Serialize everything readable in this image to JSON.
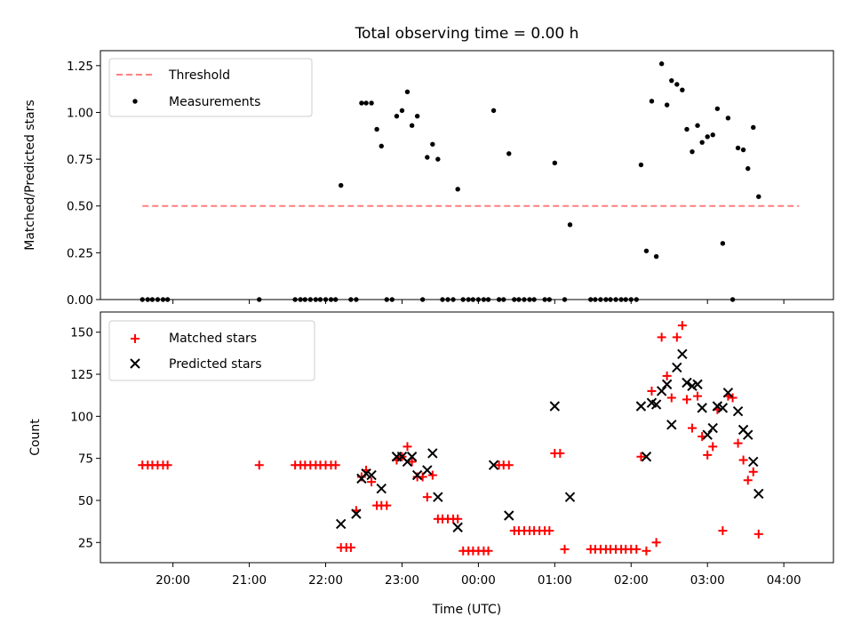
{
  "chart_data": [
    {
      "type": "scatter",
      "title": "Total observing time = 0.00 h",
      "ylabel": "Matched/Predicted stars",
      "xlabel": "",
      "x_unit": "hours since 00:00 UTC",
      "xlim": [
        -4.95,
        4.65
      ],
      "ylim": [
        0,
        1.33
      ],
      "yticks": [
        0.0,
        0.25,
        0.5,
        0.75,
        1.0,
        1.25
      ],
      "ytick_labels": [
        "0.00",
        "0.25",
        "0.50",
        "0.75",
        "1.00",
        "1.25"
      ],
      "legend": {
        "location": "upper-left",
        "entries": [
          "Threshold",
          "Measurements"
        ]
      },
      "threshold": {
        "name": "Threshold",
        "y": 0.5,
        "x_start": -4.4,
        "x_end": 4.2,
        "color": "#ff7f7f"
      },
      "series": [
        {
          "name": "Measurements",
          "color": "#000000",
          "marker": "dot",
          "points": [
            [
              -4.4,
              0.0
            ],
            [
              -4.33,
              0.0
            ],
            [
              -4.27,
              0.0
            ],
            [
              -4.2,
              0.0
            ],
            [
              -4.13,
              0.0
            ],
            [
              -4.07,
              0.0
            ],
            [
              -2.87,
              0.0
            ],
            [
              -2.4,
              0.0
            ],
            [
              -2.33,
              0.0
            ],
            [
              -2.27,
              0.0
            ],
            [
              -2.2,
              0.0
            ],
            [
              -2.13,
              0.0
            ],
            [
              -2.07,
              0.0
            ],
            [
              -2.0,
              0.0
            ],
            [
              -1.93,
              0.0
            ],
            [
              -1.87,
              0.0
            ],
            [
              -1.8,
              0.61
            ],
            [
              -1.67,
              0.0
            ],
            [
              -1.6,
              0.0
            ],
            [
              -1.53,
              1.05
            ],
            [
              -1.47,
              1.05
            ],
            [
              -1.4,
              1.05
            ],
            [
              -1.33,
              0.91
            ],
            [
              -1.27,
              0.82
            ],
            [
              -1.2,
              0.0
            ],
            [
              -1.13,
              0.0
            ],
            [
              -1.07,
              0.98
            ],
            [
              -1.0,
              1.01
            ],
            [
              -0.93,
              1.11
            ],
            [
              -0.87,
              0.93
            ],
            [
              -0.8,
              0.98
            ],
            [
              -0.73,
              0.0
            ],
            [
              -0.67,
              0.76
            ],
            [
              -0.6,
              0.83
            ],
            [
              -0.53,
              0.75
            ],
            [
              -0.47,
              0.0
            ],
            [
              -0.4,
              0.0
            ],
            [
              -0.33,
              0.0
            ],
            [
              -0.27,
              0.59
            ],
            [
              -0.2,
              0.0
            ],
            [
              -0.13,
              0.0
            ],
            [
              -0.07,
              0.0
            ],
            [
              0.0,
              0.0
            ],
            [
              0.07,
              0.0
            ],
            [
              0.13,
              0.0
            ],
            [
              0.2,
              1.01
            ],
            [
              0.27,
              0.0
            ],
            [
              0.33,
              0.0
            ],
            [
              0.4,
              0.78
            ],
            [
              0.47,
              0.0
            ],
            [
              0.53,
              0.0
            ],
            [
              0.6,
              0.0
            ],
            [
              0.67,
              0.0
            ],
            [
              0.73,
              0.0
            ],
            [
              0.87,
              0.0
            ],
            [
              0.93,
              0.0
            ],
            [
              1.0,
              0.73
            ],
            [
              1.13,
              0.0
            ],
            [
              1.2,
              0.4
            ],
            [
              1.47,
              0.0
            ],
            [
              1.53,
              0.0
            ],
            [
              1.6,
              0.0
            ],
            [
              1.67,
              0.0
            ],
            [
              1.73,
              0.0
            ],
            [
              1.8,
              0.0
            ],
            [
              1.87,
              0.0
            ],
            [
              1.93,
              0.0
            ],
            [
              2.0,
              0.0
            ],
            [
              2.07,
              0.0
            ],
            [
              2.13,
              0.72
            ],
            [
              2.2,
              0.26
            ],
            [
              2.27,
              1.06
            ],
            [
              2.33,
              0.23
            ],
            [
              2.4,
              1.26
            ],
            [
              2.47,
              1.04
            ],
            [
              2.53,
              1.17
            ],
            [
              2.6,
              1.15
            ],
            [
              2.67,
              1.12
            ],
            [
              2.73,
              0.91
            ],
            [
              2.8,
              0.79
            ],
            [
              2.87,
              0.93
            ],
            [
              2.93,
              0.84
            ],
            [
              3.0,
              0.87
            ],
            [
              3.07,
              0.88
            ],
            [
              3.13,
              1.02
            ],
            [
              3.2,
              0.3
            ],
            [
              3.27,
              0.97
            ],
            [
              3.33,
              0.0
            ],
            [
              3.4,
              0.81
            ],
            [
              3.47,
              0.8
            ],
            [
              3.53,
              0.7
            ],
            [
              3.6,
              0.92
            ],
            [
              3.67,
              0.55
            ]
          ]
        }
      ]
    },
    {
      "type": "scatter",
      "title": "",
      "ylabel": "Count",
      "xlabel": "Time (UTC)",
      "x_unit": "hours since 00:00 UTC",
      "xlim": [
        -4.95,
        4.65
      ],
      "ylim": [
        13,
        162
      ],
      "yticks": [
        25,
        50,
        75,
        100,
        125,
        150
      ],
      "ytick_labels": [
        "25",
        "50",
        "75",
        "100",
        "125",
        "150"
      ],
      "xticks": [
        -4,
        -3,
        -2,
        -1,
        0,
        1,
        2,
        3,
        4
      ],
      "xtick_labels": [
        "20:00",
        "21:00",
        "22:00",
        "23:00",
        "00:00",
        "01:00",
        "02:00",
        "03:00",
        "04:00"
      ],
      "legend": {
        "location": "upper-left",
        "entries": [
          "Matched stars",
          "Predicted stars"
        ]
      },
      "series": [
        {
          "name": "Matched stars",
          "color": "#ff0000",
          "marker": "plus",
          "points": [
            [
              -4.4,
              71
            ],
            [
              -4.33,
              71
            ],
            [
              -4.27,
              71
            ],
            [
              -4.2,
              71
            ],
            [
              -4.13,
              71
            ],
            [
              -4.07,
              71
            ],
            [
              -2.87,
              71
            ],
            [
              -2.4,
              71
            ],
            [
              -2.33,
              71
            ],
            [
              -2.27,
              71
            ],
            [
              -2.2,
              71
            ],
            [
              -2.13,
              71
            ],
            [
              -2.07,
              71
            ],
            [
              -2.0,
              71
            ],
            [
              -1.93,
              71
            ],
            [
              -1.87,
              71
            ],
            [
              -1.8,
              22
            ],
            [
              -1.73,
              22
            ],
            [
              -1.67,
              22
            ],
            [
              -1.6,
              44
            ],
            [
              -1.53,
              64
            ],
            [
              -1.47,
              68
            ],
            [
              -1.4,
              61
            ],
            [
              -1.33,
              47
            ],
            [
              -1.27,
              47
            ],
            [
              -1.2,
              47
            ],
            [
              -1.07,
              74
            ],
            [
              -1.0,
              76
            ],
            [
              -0.93,
              82
            ],
            [
              -0.87,
              73
            ],
            [
              -0.8,
              64
            ],
            [
              -0.73,
              64
            ],
            [
              -0.67,
              52
            ],
            [
              -0.6,
              65
            ],
            [
              -0.53,
              39
            ],
            [
              -0.47,
              39
            ],
            [
              -0.4,
              39
            ],
            [
              -0.33,
              39
            ],
            [
              -0.27,
              39
            ],
            [
              -0.2,
              20
            ],
            [
              -0.13,
              20
            ],
            [
              -0.07,
              20
            ],
            [
              0.0,
              20
            ],
            [
              0.07,
              20
            ],
            [
              0.13,
              20
            ],
            [
              0.27,
              71
            ],
            [
              0.33,
              71
            ],
            [
              0.4,
              71
            ],
            [
              0.47,
              32
            ],
            [
              0.53,
              32
            ],
            [
              0.6,
              32
            ],
            [
              0.67,
              32
            ],
            [
              0.73,
              32
            ],
            [
              0.8,
              32
            ],
            [
              0.87,
              32
            ],
            [
              0.93,
              32
            ],
            [
              1.0,
              78
            ],
            [
              1.07,
              78
            ],
            [
              1.13,
              21
            ],
            [
              1.47,
              21
            ],
            [
              1.53,
              21
            ],
            [
              1.6,
              21
            ],
            [
              1.67,
              21
            ],
            [
              1.73,
              21
            ],
            [
              1.8,
              21
            ],
            [
              1.87,
              21
            ],
            [
              1.93,
              21
            ],
            [
              2.0,
              21
            ],
            [
              2.07,
              21
            ],
            [
              2.13,
              76
            ],
            [
              2.2,
              20
            ],
            [
              2.27,
              115
            ],
            [
              2.33,
              25
            ],
            [
              2.4,
              147
            ],
            [
              2.47,
              124
            ],
            [
              2.53,
              111
            ],
            [
              2.6,
              147
            ],
            [
              2.67,
              154
            ],
            [
              2.73,
              110
            ],
            [
              2.8,
              93
            ],
            [
              2.87,
              112
            ],
            [
              2.93,
              88
            ],
            [
              3.0,
              77
            ],
            [
              3.07,
              82
            ],
            [
              3.13,
              104
            ],
            [
              3.2,
              32
            ],
            [
              3.27,
              112
            ],
            [
              3.33,
              111
            ],
            [
              3.4,
              84
            ],
            [
              3.47,
              74
            ],
            [
              3.53,
              62
            ],
            [
              3.6,
              67
            ],
            [
              3.67,
              30
            ]
          ]
        },
        {
          "name": "Predicted stars",
          "color": "#000000",
          "marker": "x",
          "points": [
            [
              -1.8,
              36
            ],
            [
              -1.6,
              42
            ],
            [
              -1.53,
              63
            ],
            [
              -1.47,
              66
            ],
            [
              -1.4,
              65
            ],
            [
              -1.27,
              57
            ],
            [
              -1.07,
              76
            ],
            [
              -1.0,
              76
            ],
            [
              -0.93,
              73
            ],
            [
              -0.87,
              76
            ],
            [
              -0.8,
              65
            ],
            [
              -0.67,
              68
            ],
            [
              -0.6,
              78
            ],
            [
              -0.53,
              52
            ],
            [
              -0.27,
              34
            ],
            [
              0.2,
              71
            ],
            [
              0.4,
              41
            ],
            [
              1.0,
              106
            ],
            [
              1.2,
              52
            ],
            [
              2.13,
              106
            ],
            [
              2.2,
              76
            ],
            [
              2.27,
              108
            ],
            [
              2.33,
              107
            ],
            [
              2.4,
              115
            ],
            [
              2.47,
              119
            ],
            [
              2.53,
              95
            ],
            [
              2.6,
              129
            ],
            [
              2.67,
              137
            ],
            [
              2.73,
              120
            ],
            [
              2.8,
              118
            ],
            [
              2.87,
              119
            ],
            [
              2.93,
              105
            ],
            [
              3.0,
              89
            ],
            [
              3.07,
              93
            ],
            [
              3.13,
              106
            ],
            [
              3.2,
              105
            ],
            [
              3.27,
              114
            ],
            [
              3.4,
              103
            ],
            [
              3.47,
              92
            ],
            [
              3.53,
              89
            ],
            [
              3.6,
              73
            ],
            [
              3.67,
              54
            ]
          ]
        }
      ]
    }
  ]
}
